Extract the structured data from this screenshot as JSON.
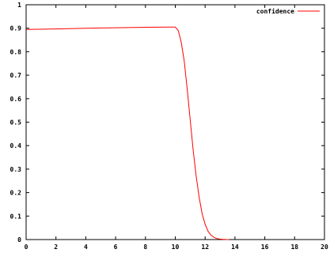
{
  "chart_data": {
    "type": "line",
    "title": "",
    "xlabel": "",
    "ylabel": "",
    "xlim": [
      0,
      20
    ],
    "ylim": [
      0,
      1
    ],
    "x_ticks": [
      0,
      2,
      4,
      6,
      8,
      10,
      12,
      14,
      16,
      18,
      20
    ],
    "y_ticks": [
      0,
      0.1,
      0.2,
      0.3,
      0.4,
      0.5,
      0.6,
      0.7,
      0.8,
      0.9,
      1
    ],
    "x_tick_labels": [
      "0",
      "2",
      "4",
      "6",
      "8",
      "10",
      "12",
      "14",
      "16",
      "18",
      "20"
    ],
    "y_tick_labels": [
      "0",
      "0.1",
      "0.2",
      "0.3",
      "0.4",
      "0.5",
      "0.6",
      "0.7",
      "0.8",
      "0.9",
      "1"
    ],
    "grid": false,
    "legend_position": "top-right",
    "series": [
      {
        "name": "confidence",
        "color": "#ff0000",
        "x": [
          0,
          2,
          4,
          6,
          8,
          9.5,
          10,
          10.2,
          10.4,
          10.6,
          10.8,
          11.0,
          11.2,
          11.4,
          11.6,
          11.8,
          12.0,
          12.2,
          12.4,
          12.6,
          12.8,
          13.0,
          13.2,
          13.4,
          13.6
        ],
        "y": [
          0.895,
          0.897,
          0.9,
          0.902,
          0.904,
          0.905,
          0.905,
          0.89,
          0.84,
          0.76,
          0.64,
          0.51,
          0.38,
          0.27,
          0.18,
          0.11,
          0.065,
          0.035,
          0.018,
          0.009,
          0.004,
          0.002,
          0.001,
          0.0003,
          0
        ]
      }
    ]
  }
}
